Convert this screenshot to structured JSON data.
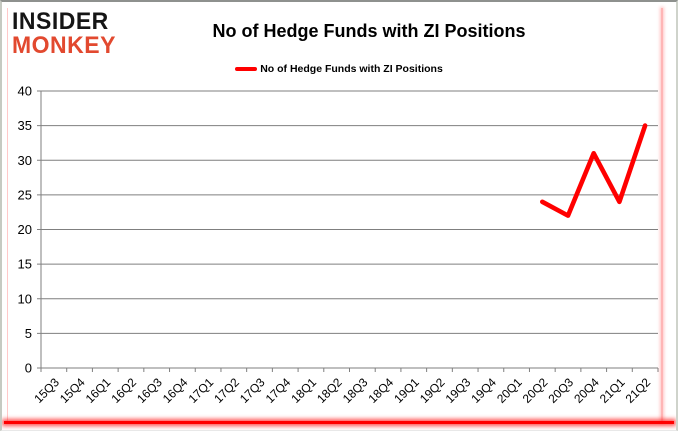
{
  "brand": {
    "line1": "INSIDER",
    "line2": "MONKEY",
    "line1_color": "#151515",
    "line2_color": "#e2492f"
  },
  "header": {
    "title": "No of Hedge Funds with ZI Positions"
  },
  "legend": {
    "label": "No of Hedge Funds with ZI Positions",
    "swatch_color": "#ff0000"
  },
  "chart_data": {
    "type": "line",
    "title": "No of Hedge Funds with ZI Positions",
    "categories": [
      "15Q3",
      "15Q4",
      "16Q1",
      "16Q2",
      "16Q3",
      "16Q4",
      "17Q1",
      "17Q2",
      "17Q3",
      "17Q4",
      "18Q1",
      "18Q2",
      "18Q3",
      "18Q4",
      "19Q1",
      "19Q2",
      "19Q3",
      "19Q4",
      "20Q1",
      "20Q2",
      "20Q3",
      "20Q4",
      "21Q1",
      "21Q2"
    ],
    "series": [
      {
        "name": "No of Hedge Funds with ZI Positions",
        "color": "#ff0000",
        "values": [
          null,
          null,
          null,
          null,
          null,
          null,
          null,
          null,
          null,
          null,
          null,
          null,
          null,
          null,
          null,
          null,
          null,
          null,
          null,
          24,
          22,
          31,
          24,
          35
        ]
      }
    ],
    "xlabel": "",
    "ylabel": "",
    "ylim": [
      0,
      40
    ],
    "yticks": [
      0,
      5,
      10,
      15,
      20,
      25,
      30,
      35,
      40
    ],
    "grid": true,
    "legend_position": "top",
    "colors": {
      "gridline": "#7f7f7f",
      "axis": "#7f7f7f",
      "tick_label": "#000000"
    }
  }
}
